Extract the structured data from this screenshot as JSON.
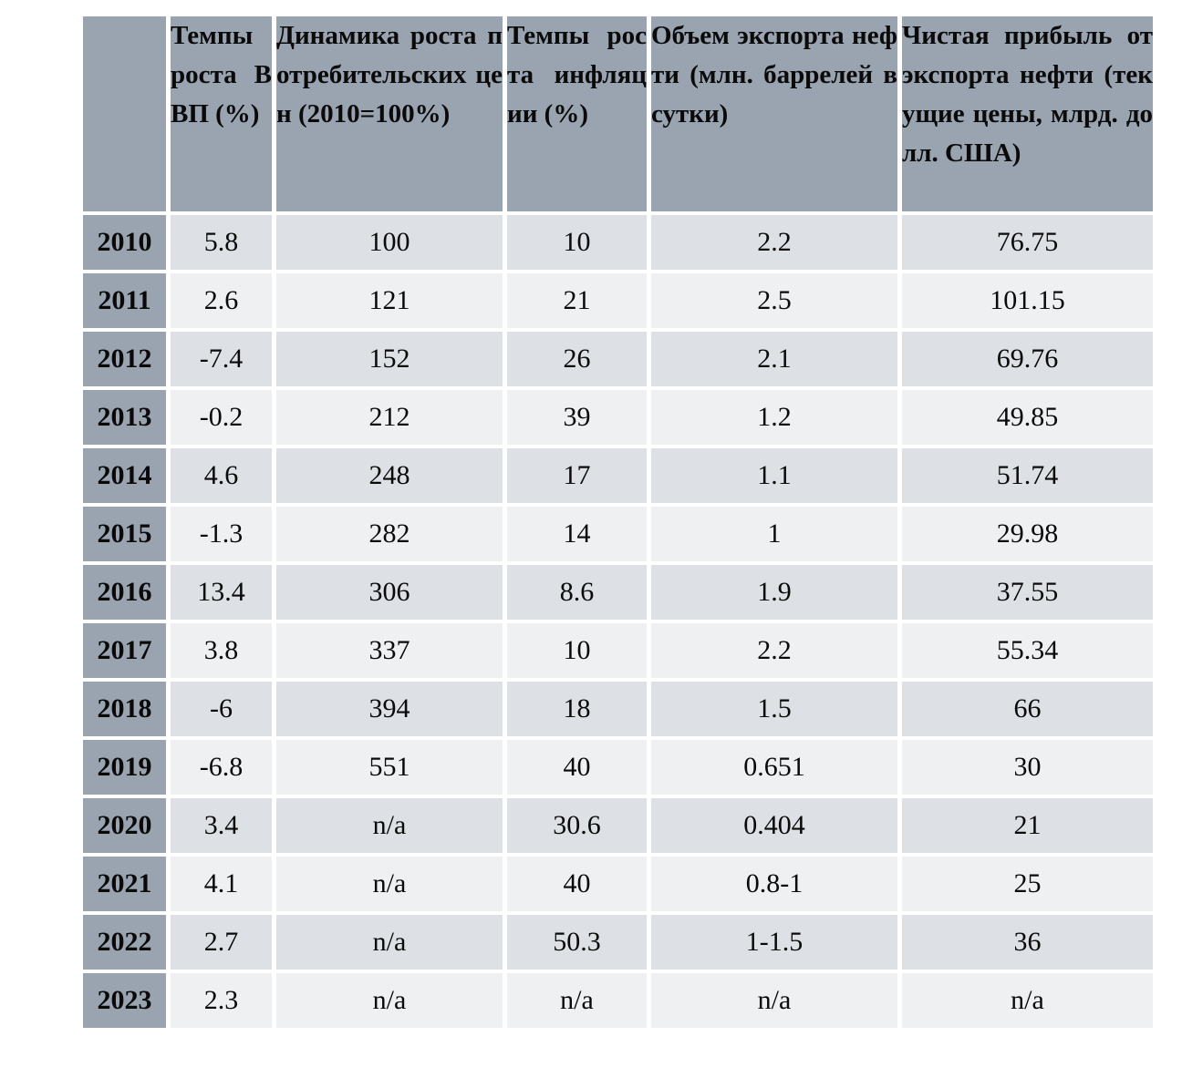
{
  "colors": {
    "header-bg": "#9aa4b1",
    "row-dark": "#dde0e4",
    "row-light": "#eef0f2",
    "gap": "#ffffff",
    "text": "#0a0a0a"
  },
  "table": {
    "corner_label": "",
    "columns": [
      {
        "label": "Темпы роста ВВП (%)"
      },
      {
        "label": "Динамика роста потребительских цен (2010=100%)"
      },
      {
        "label": "Темпы роста инфляции (%)"
      },
      {
        "label": "Объем экспорта нефти (млн. баррелей в сутки)"
      },
      {
        "label": "Чистая прибыль от экспорта нефти (текущие цены, млрд. долл. США)"
      }
    ],
    "rows": [
      {
        "year": "2010",
        "values": [
          "5.8",
          "100",
          "10",
          "2.2",
          "76.75"
        ]
      },
      {
        "year": "2011",
        "values": [
          "2.6",
          "121",
          "21",
          "2.5",
          "101.15"
        ]
      },
      {
        "year": "2012",
        "values": [
          "-7.4",
          "152",
          "26",
          "2.1",
          "69.76"
        ]
      },
      {
        "year": "2013",
        "values": [
          "-0.2",
          "212",
          "39",
          "1.2",
          "49.85"
        ]
      },
      {
        "year": "2014",
        "values": [
          "4.6",
          "248",
          "17",
          "1.1",
          "51.74"
        ]
      },
      {
        "year": "2015",
        "values": [
          "-1.3",
          "282",
          "14",
          "1",
          "29.98"
        ]
      },
      {
        "year": "2016",
        "values": [
          "13.4",
          "306",
          "8.6",
          "1.9",
          "37.55"
        ]
      },
      {
        "year": "2017",
        "values": [
          "3.8",
          "337",
          "10",
          "2.2",
          "55.34"
        ]
      },
      {
        "year": "2018",
        "values": [
          "-6",
          "394",
          "18",
          "1.5",
          "66"
        ]
      },
      {
        "year": "2019",
        "values": [
          "-6.8",
          "551",
          "40",
          "0.651",
          "30"
        ]
      },
      {
        "year": "2020",
        "values": [
          "3.4",
          "n/a",
          "30.6",
          "0.404",
          "21"
        ]
      },
      {
        "year": "2021",
        "values": [
          "4.1",
          "n/a",
          "40",
          "0.8-1",
          "25"
        ]
      },
      {
        "year": "2022",
        "values": [
          "2.7",
          "n/a",
          "50.3",
          "1-1.5",
          "36"
        ]
      },
      {
        "year": "2023",
        "values": [
          "2.3",
          "n/a",
          "n/a",
          "n/a",
          "n/a"
        ]
      }
    ]
  }
}
